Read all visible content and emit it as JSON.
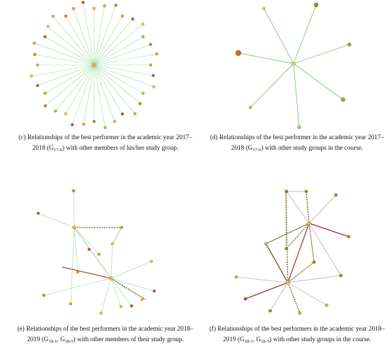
{
  "figure": {
    "panels": [
      {
        "caption": {
          "lines": [
            [
              "(c) Relationships of the best performer in the academic year 2017–"
            ],
            [
              "2018 (G",
              "17-6",
              ") with other members of his/her study group."
            ]
          ]
        }
      },
      {
        "caption": {
          "lines": [
            [
              "(d) Relationships of the best performer in the academic year 2017–"
            ],
            [
              "2018 (G",
              "17-6",
              ") with other study groups in the course."
            ]
          ]
        }
      },
      {
        "caption": {
          "lines": [
            [
              "(e) Relationships of the best performers in the academic year 2018–"
            ],
            [
              "2019 (G",
              "18-1",
              ", G",
              "18-5",
              ") with other members of their study group."
            ]
          ]
        }
      },
      {
        "caption": {
          "lines": [
            [
              "(f) Relationships of the best performers in the academic year 2018–"
            ],
            [
              "2019 (G",
              "18-1",
              ", G",
              "18-5",
              ") with other study groups in the course."
            ]
          ]
        }
      }
    ]
  }
}
